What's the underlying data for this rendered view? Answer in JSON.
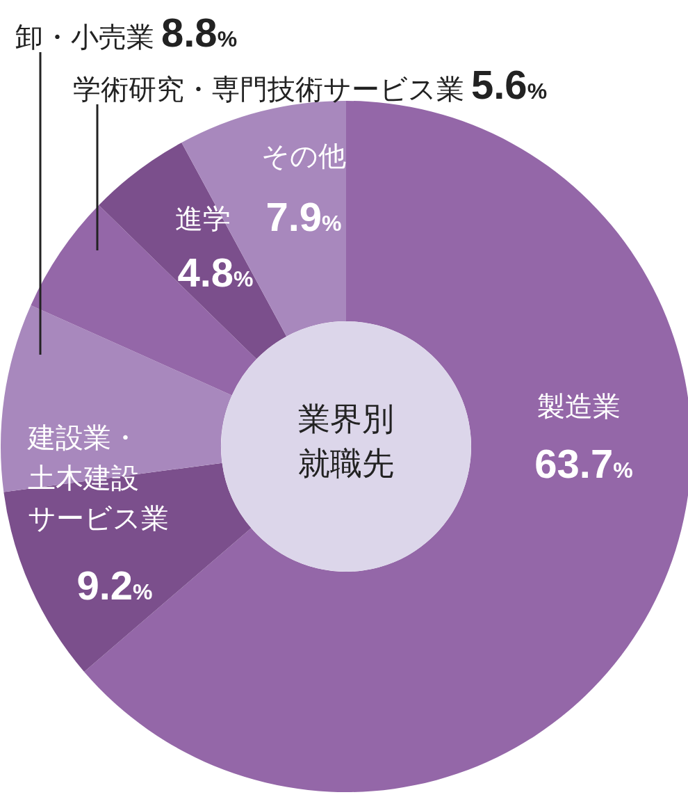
{
  "chart_data": {
    "type": "donut",
    "title": "業界別就職先",
    "categories": [
      "製造業",
      "建設業・土木建設サービス業",
      "卸・小売業",
      "学術研究・専門技術サービス業",
      "進学",
      "その他"
    ],
    "values": [
      63.7,
      9.2,
      8.8,
      5.6,
      4.8,
      7.9
    ],
    "value_labels": [
      "63.7%",
      "9.2%",
      "8.8%",
      "5.6%",
      "4.8%",
      "7.9%"
    ],
    "colors": [
      "#9467a8",
      "#7b4f8c",
      "#a888bd",
      "#9467a8",
      "#7b4f8c",
      "#a888bd"
    ]
  }
}
